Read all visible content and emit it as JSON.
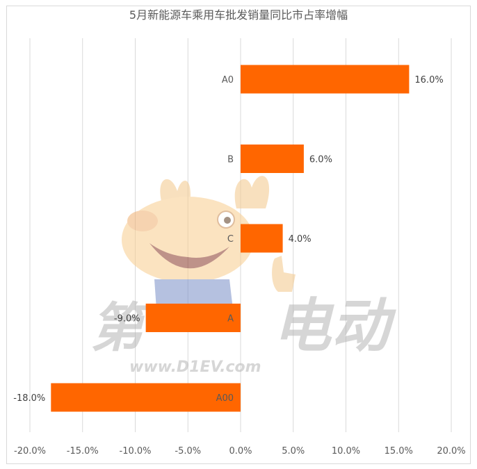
{
  "chart_data": {
    "type": "bar",
    "orientation": "horizontal",
    "title": "5月新能源车乘用车批发销量同比市占率增幅",
    "categories": [
      "A0",
      "B",
      "C",
      "A",
      "A00"
    ],
    "values": [
      16.0,
      6.0,
      4.0,
      -9.0,
      -18.0
    ],
    "value_labels": [
      "16.0%",
      "6.0%",
      "4.0%",
      "-9.0%",
      "-18.0%"
    ],
    "xlim": [
      -20,
      20
    ],
    "xticks": [
      -20,
      -15,
      -10,
      -5,
      0,
      5,
      10,
      15,
      20
    ],
    "xtick_labels": [
      "-20.0%",
      "-15.0%",
      "-10.0%",
      "-5.0%",
      "0.0%",
      "5.0%",
      "10.0%",
      "15.0%",
      "20.0%"
    ],
    "grid": "vertical",
    "legend": "none",
    "bar_color": "#ff6600"
  },
  "watermark": {
    "text_left": "第",
    "text_right": "电动",
    "url": "www.D1EV.com"
  }
}
